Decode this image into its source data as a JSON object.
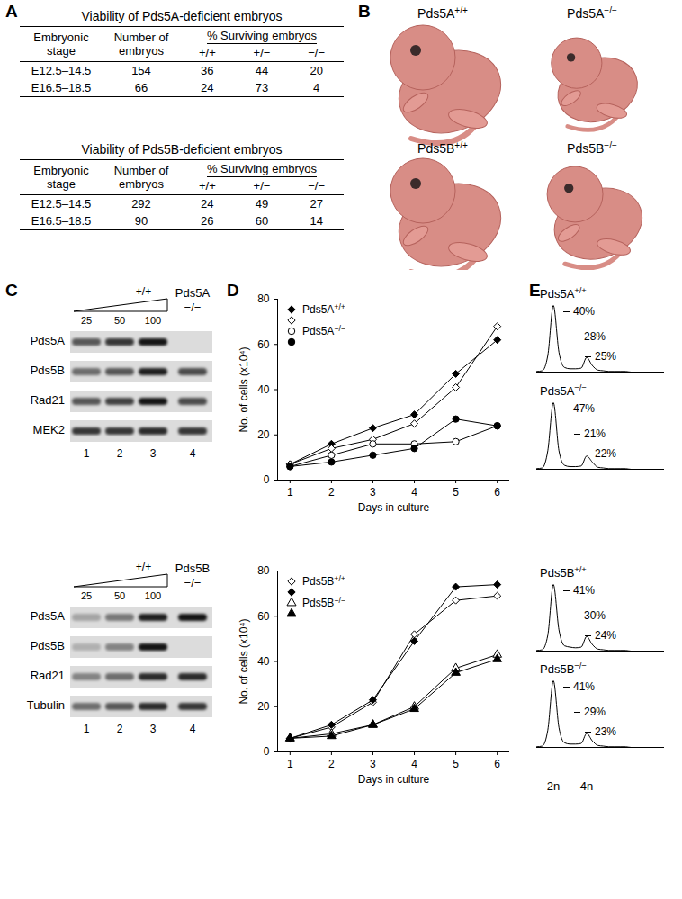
{
  "panel_labels": [
    "A",
    "B",
    "C",
    "D",
    "E"
  ],
  "tables": [
    {
      "title": "Viability of Pds5A-deficient embryos",
      "columns": [
        "Embryonic stage",
        "Number of embryos",
        "% Surviving embryos"
      ],
      "genotypes": [
        "+/+",
        "+/−",
        "−/−"
      ],
      "rows": [
        {
          "stage": "E12.5–14.5",
          "embryos": 154,
          "percent": [
            36,
            44,
            20
          ]
        },
        {
          "stage": "E16.5–18.5",
          "embryos": 66,
          "percent": [
            24,
            73,
            4
          ]
        }
      ]
    },
    {
      "title": "Viability of Pds5B-deficient embryos",
      "columns": [
        "Embryonic stage",
        "Number of embryos",
        "% Surviving embryos"
      ],
      "genotypes": [
        "+/+",
        "+/−",
        "−/−"
      ],
      "rows": [
        {
          "stage": "E12.5–14.5",
          "embryos": 292,
          "percent": [
            24,
            49,
            27
          ]
        },
        {
          "stage": "E16.5–18.5",
          "embryos": 90,
          "percent": [
            26,
            60,
            14
          ]
        }
      ]
    }
  ],
  "photos": [
    [
      "Pds5A+/+",
      "Pds5A−/−"
    ],
    [
      "Pds5B+/+",
      "Pds5B−/−"
    ]
  ],
  "blots": [
    {
      "wildtype": "+/+",
      "amounts": [
        25,
        50,
        100
      ],
      "mutant": [
        "Pds5A",
        "−/−"
      ],
      "lanes": [
        1,
        2,
        3,
        4
      ],
      "rows": [
        {
          "label": "Pds5A",
          "intensity": [
            0.6,
            0.75,
            0.9,
            0
          ]
        },
        {
          "label": "Pds5B",
          "intensity": [
            0.5,
            0.6,
            0.85,
            0.65
          ]
        },
        {
          "label": "Rad21",
          "intensity": [
            0.6,
            0.7,
            0.9,
            0.65
          ]
        },
        {
          "label": "MEK2",
          "intensity": [
            0.75,
            0.75,
            0.8,
            0.75
          ]
        }
      ]
    },
    {
      "wildtype": "+/+",
      "amounts": [
        25,
        50,
        100
      ],
      "mutant": [
        "Pds5B",
        "−/−"
      ],
      "lanes": [
        1,
        2,
        3,
        4
      ],
      "rows": [
        {
          "label": "Pds5A",
          "intensity": [
            0.25,
            0.45,
            0.85,
            0.9
          ]
        },
        {
          "label": "Pds5B",
          "intensity": [
            0.2,
            0.4,
            0.9,
            0
          ]
        },
        {
          "label": "Rad21",
          "intensity": [
            0.4,
            0.5,
            0.8,
            0.8
          ]
        },
        {
          "label": "Tubulin",
          "intensity": [
            0.5,
            0.6,
            0.8,
            0.75
          ]
        }
      ]
    }
  ],
  "chart_data": [
    {
      "type": "line",
      "xlabel": "Days in culture",
      "ylabel": "No. of cells (x10⁴)",
      "x": [
        1,
        2,
        3,
        4,
        5,
        6
      ],
      "xlim": [
        0.7,
        6.3
      ],
      "xticks": [
        1,
        2,
        3,
        4,
        5,
        6
      ],
      "ylim": [
        0,
        80
      ],
      "yticks": [
        0,
        20,
        40,
        60,
        80
      ],
      "legend": "top-left",
      "series": [
        {
          "name": "Pds5A+/+",
          "color": "#000000",
          "marker": "diamond",
          "values": [
            7,
            16,
            23,
            29,
            47,
            62
          ]
        },
        {
          "name": null,
          "color": "#000000",
          "marker": "diamond-open",
          "values": [
            7,
            14,
            18,
            25,
            41,
            68
          ]
        },
        {
          "name": "Pds5A−/−",
          "color": "#000000",
          "marker": "circle-open",
          "values": [
            6,
            11,
            16,
            16,
            17,
            24
          ]
        },
        {
          "name": null,
          "color": "#000000",
          "marker": "circle",
          "values": [
            6,
            8,
            11,
            14,
            27,
            24
          ]
        }
      ]
    },
    {
      "type": "line",
      "xlabel": "Days in culture",
      "ylabel": "No. of cells (x10⁴)",
      "x": [
        1,
        2,
        3,
        4,
        5,
        6
      ],
      "xlim": [
        0.7,
        6.3
      ],
      "xticks": [
        1,
        2,
        3,
        4,
        5,
        6
      ],
      "ylim": [
        0,
        80
      ],
      "yticks": [
        0,
        20,
        40,
        60,
        80
      ],
      "legend": "top-left",
      "series": [
        {
          "name": "Pds5B+/+",
          "color": "#000000",
          "marker": "diamond-open",
          "values": [
            6,
            11,
            22,
            52,
            67,
            69
          ]
        },
        {
          "name": null,
          "color": "#000000",
          "marker": "diamond",
          "values": [
            6,
            12,
            23,
            49,
            73,
            74
          ]
        },
        {
          "name": "Pds5B−/−",
          "color": "#000000",
          "marker": "triangle-open",
          "values": [
            6,
            8,
            12,
            20,
            37,
            43
          ]
        },
        {
          "name": null,
          "color": "#000000",
          "marker": "triangle",
          "values": [
            6,
            7,
            12,
            19,
            35,
            41
          ]
        }
      ]
    }
  ],
  "histograms": {
    "x_ticks": [
      {
        "value": 3,
        "label": "2n"
      },
      {
        "value": 9,
        "label": "4n"
      }
    ],
    "panels": [
      {
        "title": "Pds5A+/+",
        "gates": [
          {
            "value": 40,
            "label": "40%"
          },
          {
            "value": 28,
            "label": "28%"
          },
          {
            "value": 25,
            "label": "25%"
          }
        ],
        "profile": [
          1,
          2,
          25,
          100,
          30,
          7,
          5,
          5,
          6,
          22,
          10,
          3,
          2,
          1,
          1,
          1,
          1,
          0,
          0,
          0,
          0,
          0,
          0,
          0
        ]
      },
      {
        "title": "Pds5A−/−",
        "gates": [
          {
            "value": 47,
            "label": "47%"
          },
          {
            "value": 21,
            "label": "21%"
          },
          {
            "value": 22,
            "label": "22%"
          }
        ],
        "profile": [
          1,
          2,
          28,
          100,
          28,
          6,
          4,
          4,
          5,
          20,
          11,
          3,
          2,
          1,
          1,
          1,
          1,
          0,
          0,
          0,
          0,
          0,
          0,
          0
        ]
      },
      {
        "title": "Pds5B+/+",
        "gates": [
          {
            "value": 41,
            "label": "41%"
          },
          {
            "value": 30,
            "label": "30%"
          },
          {
            "value": 24,
            "label": "24%"
          }
        ],
        "profile": [
          1,
          2,
          24,
          100,
          32,
          8,
          6,
          5,
          6,
          22,
          10,
          3,
          2,
          1,
          1,
          1,
          1,
          0,
          0,
          0,
          0,
          0,
          0,
          0
        ]
      },
      {
        "title": "Pds5B−/−",
        "gates": [
          {
            "value": 41,
            "label": "41%"
          },
          {
            "value": 29,
            "label": "29%"
          },
          {
            "value": 23,
            "label": "23%"
          }
        ],
        "profile": [
          1,
          2,
          26,
          100,
          30,
          7,
          5,
          5,
          6,
          21,
          10,
          3,
          2,
          1,
          1,
          1,
          1,
          0,
          0,
          0,
          0,
          0,
          0,
          0
        ]
      }
    ]
  }
}
